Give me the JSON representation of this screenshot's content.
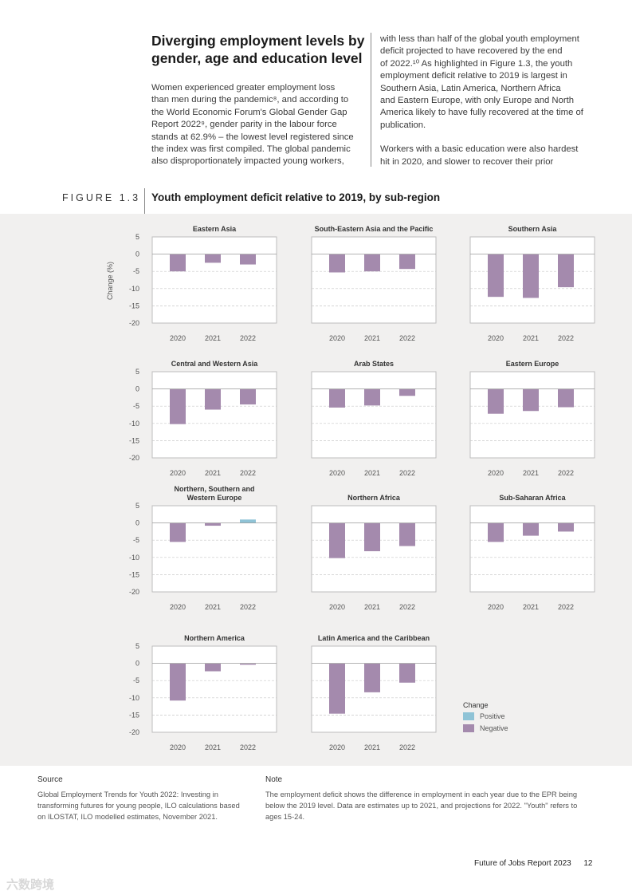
{
  "article": {
    "heading": "Diverging employment levels by gender, age and education level",
    "col1": [
      "Women experienced greater employment loss",
      "than men during the pandemic⁸, and according to",
      "the World Economic Forum's Global Gender Gap",
      "Report 2022⁹, gender parity in the labour force",
      "stands at 62.9% – the lowest level registered since",
      "the index was first compiled. The global pandemic",
      "also disproportionately impacted young workers,"
    ],
    "col2_p1": [
      "with less than half of the global youth employment",
      "deficit projected to have recovered by the end",
      "of 2022.¹⁰ As highlighted in Figure 1.3, the youth",
      "employment deficit relative to 2019 is largest in",
      "Southern Asia, Latin America, Northern Africa",
      "and Eastern Europe, with only Europe and North",
      "America likely to have fully recovered at the time of",
      "publication."
    ],
    "col2_p2": [
      "Workers with a basic education were also hardest",
      "hit in 2020, and slower to recover their prior"
    ]
  },
  "figure": {
    "label": "FIGURE 1.3",
    "title": "Youth employment deficit relative to 2019, by sub-region"
  },
  "chart_data": {
    "type": "bar",
    "title": "Youth employment deficit relative to 2019, by sub-region",
    "ylabel": "Change (%)",
    "ylim": [
      -20,
      5
    ],
    "yticks": [
      "5",
      "0",
      "-5",
      "-10",
      "-15",
      "-20"
    ],
    "categories": [
      "2020",
      "2021",
      "2022"
    ],
    "colors": {
      "positive": "#8fc3d6",
      "negative": "#a48aad"
    },
    "legend": {
      "title": "Change",
      "items": [
        "Positive",
        "Negative"
      ],
      "position": "bottom-right"
    },
    "series": [
      {
        "name": "Eastern Asia",
        "values": [
          -5,
          -2.5,
          -3
        ]
      },
      {
        "name": "South-Eastern Asia and the Pacific",
        "values": [
          -5.3,
          -5,
          -4.3
        ]
      },
      {
        "name": "Southern Asia",
        "values": [
          -12.4,
          -12.7,
          -9.6
        ]
      },
      {
        "name": "Central and Western Asia",
        "values": [
          -10.2,
          -6,
          -4.5
        ]
      },
      {
        "name": "Arab States",
        "values": [
          -5.4,
          -4.8,
          -2
        ]
      },
      {
        "name": "Eastern Europe",
        "values": [
          -7.2,
          -6.4,
          -5.3
        ]
      },
      {
        "name": "Northern, Southern and Western Europe",
        "values": [
          -5.5,
          -0.8,
          1
        ]
      },
      {
        "name": "Northern Africa",
        "values": [
          -10.2,
          -8.2,
          -6.7
        ]
      },
      {
        "name": "Sub-Saharan Africa",
        "values": [
          -5.5,
          -3.7,
          -2.5
        ]
      },
      {
        "name": "Northern America",
        "values": [
          -10.8,
          -2.3,
          -0.4
        ]
      },
      {
        "name": "Latin America and the Caribbean",
        "values": [
          -14.6,
          -8.4,
          -5.6
        ]
      }
    ]
  },
  "source": {
    "title": "Source",
    "lines": [
      "Global Employment Trends for Youth 2022: Investing in",
      "transforming futures for young people, ILO calculations based",
      "on ILOSTAT, ILO modelled estimates, November 2021."
    ]
  },
  "note": {
    "title": "Note",
    "lines": [
      "The employment deficit shows the difference in employment in each year due to the EPR being",
      "below the 2019 level. Data are estimates up to 2021, and projections for 2022. \"Youth\" refers to",
      "ages 15-24."
    ]
  },
  "footer": {
    "report": "Future of Jobs Report 2023",
    "page": "12"
  },
  "watermark": "六数跨境"
}
